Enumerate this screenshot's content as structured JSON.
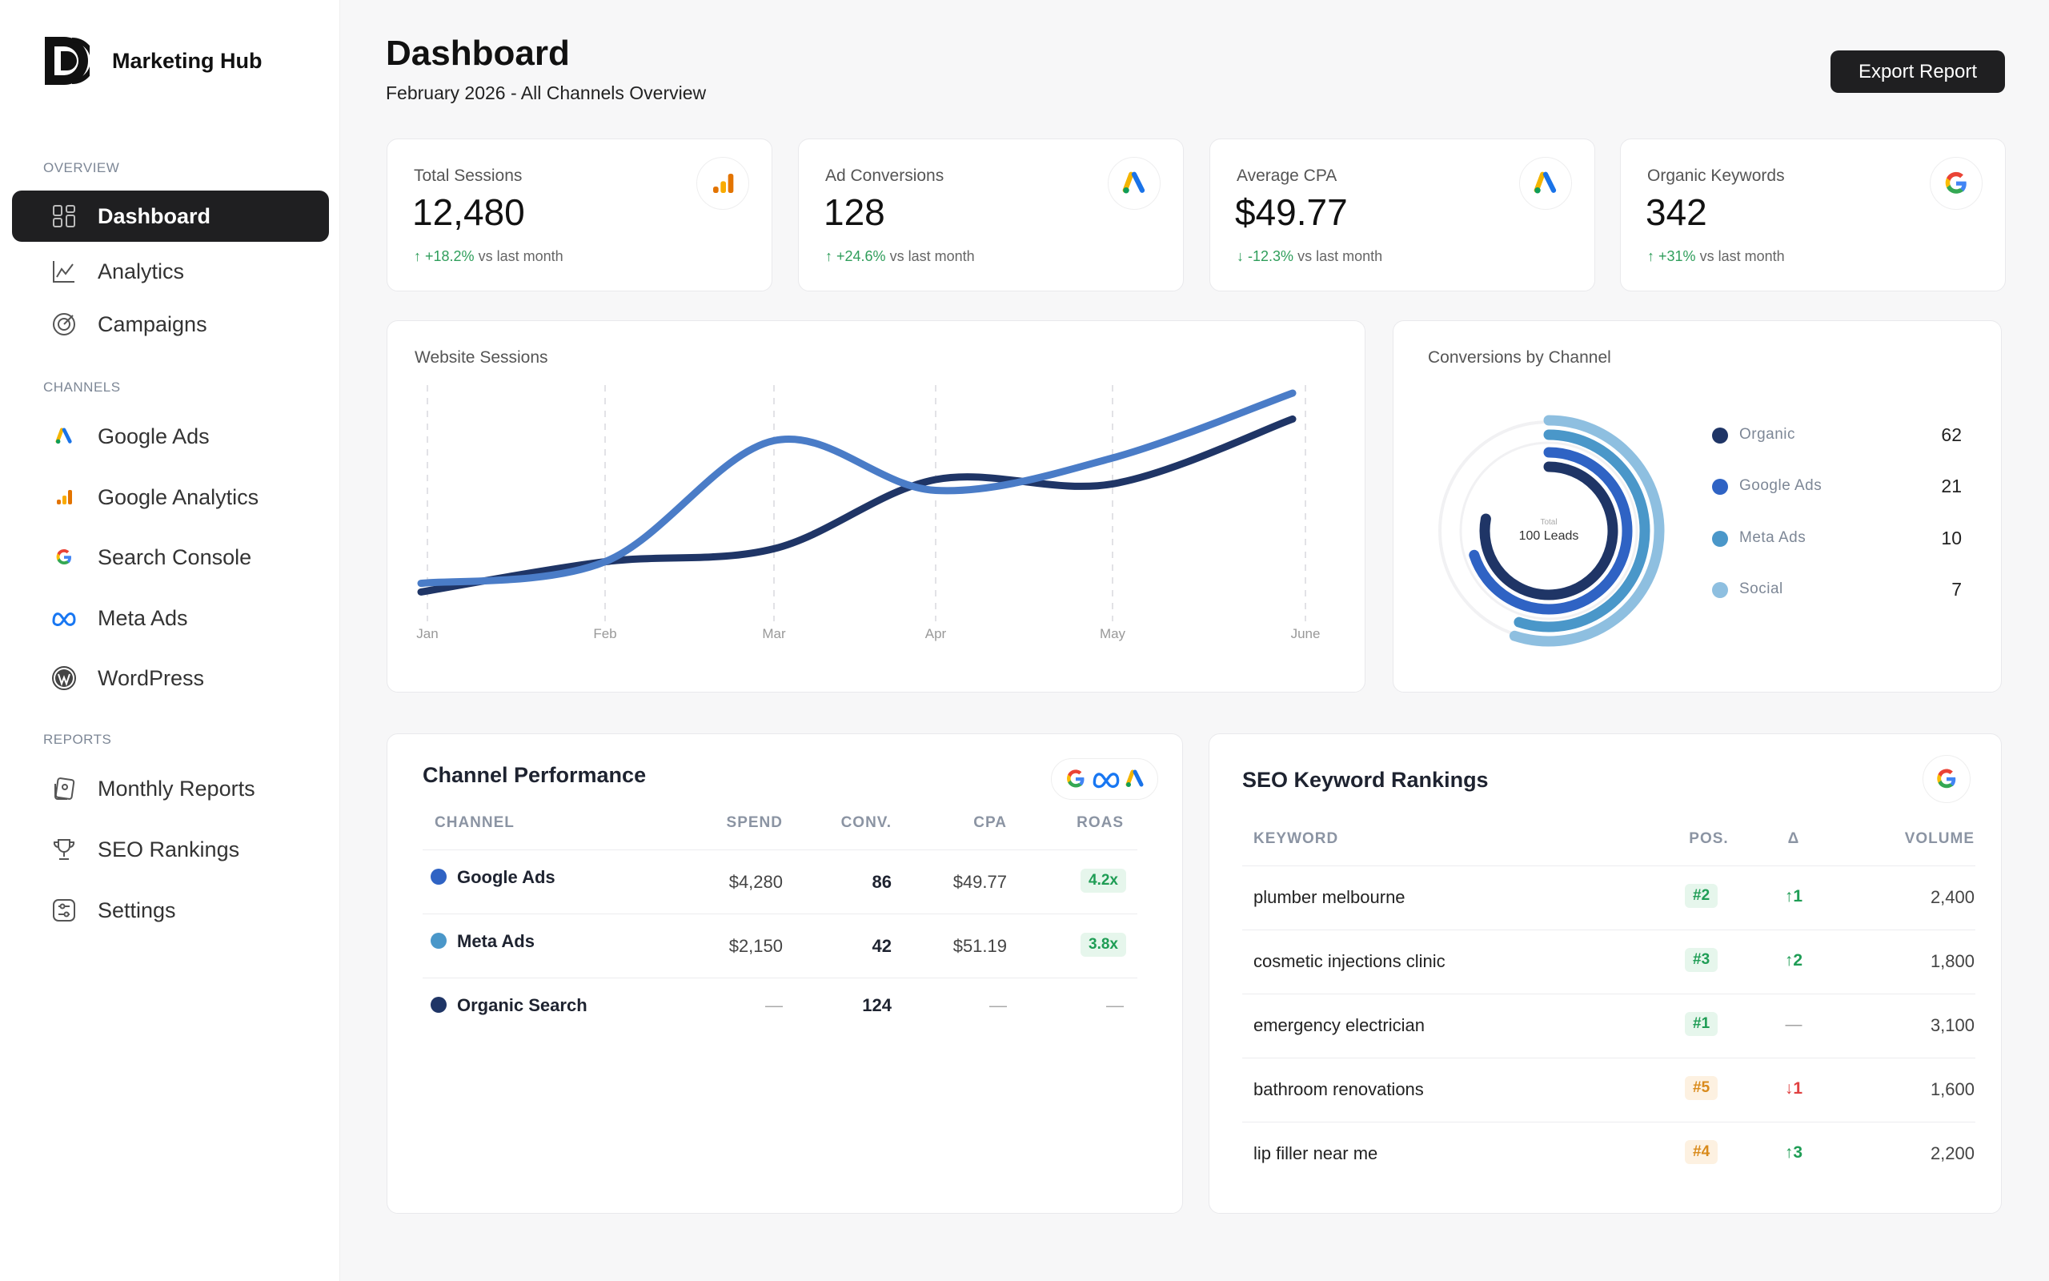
{
  "sidebar": {
    "brand": "Marketing Hub",
    "sections": {
      "overview": "OVERVIEW",
      "channels": "CHANNELS",
      "reports": "REPORTS"
    },
    "items": [
      {
        "label": "Dashboard",
        "icon": "grid-icon",
        "active": true
      },
      {
        "label": "Analytics",
        "icon": "line-chart-icon"
      },
      {
        "label": "Campaigns",
        "icon": "target-icon"
      },
      {
        "label": "Google Ads",
        "icon": "google-ads-icon"
      },
      {
        "label": "Google Analytics",
        "icon": "google-analytics-icon"
      },
      {
        "label": "Search Console",
        "icon": "google-icon"
      },
      {
        "label": "Meta Ads",
        "icon": "meta-icon"
      },
      {
        "label": "WordPress",
        "icon": "wordpress-icon"
      },
      {
        "label": "Monthly Reports",
        "icon": "reports-icon"
      },
      {
        "label": "SEO Rankings",
        "icon": "trophy-icon"
      },
      {
        "label": "Settings",
        "icon": "settings-icon"
      }
    ]
  },
  "header": {
    "title": "Dashboard",
    "subtitle": "February 2026 - All Channels Overview",
    "export_label": "Export Report"
  },
  "kpis": [
    {
      "label": "Total Sessions",
      "value": "12,480",
      "delta": "↑ +18.2%",
      "suffix": "vs last month",
      "icon": "google-analytics-icon"
    },
    {
      "label": "Ad Conversions",
      "value": "128",
      "delta": "↑ +24.6%",
      "suffix": "vs last month",
      "icon": "google-ads-icon"
    },
    {
      "label": "Average CPA",
      "value": "$49.77",
      "delta": "↓ -12.3%",
      "suffix": "vs last month",
      "icon": "google-ads-icon"
    },
    {
      "label": "Organic Keywords",
      "value": "342",
      "delta": "↑ +31%",
      "suffix": "vs last month",
      "icon": "google-icon"
    }
  ],
  "sessions_chart": {
    "title": "Website Sessions"
  },
  "conversions_chart": {
    "title": "Conversions by Channel",
    "center_small": "Total",
    "center_label": "100 Leads"
  },
  "chart_data": [
    {
      "type": "line",
      "title": "Website Sessions",
      "categories": [
        "Jan",
        "Feb",
        "Mar",
        "Apr",
        "May",
        "June"
      ],
      "series": [
        {
          "color": "#1f3566",
          "values": [
            0.08,
            0.22,
            0.28,
            0.6,
            0.58,
            0.88
          ]
        },
        {
          "color": "#4a7cc7",
          "values": [
            0.12,
            0.22,
            0.78,
            0.55,
            0.7,
            1.0
          ]
        }
      ],
      "ylim": [
        0,
        1
      ],
      "grid": "vertical dashed"
    },
    {
      "type": "pie",
      "title": "Conversions by Channel",
      "series": [
        {
          "name": "Organic",
          "value": 62,
          "color": "#1f3566"
        },
        {
          "name": "Google Ads",
          "value": 21,
          "color": "#2f63c4"
        },
        {
          "name": "Meta Ads",
          "value": 10,
          "color": "#4a97c9"
        },
        {
          "name": "Social",
          "value": 7,
          "color": "#8ebfe0"
        }
      ]
    }
  ],
  "channel_table": {
    "title": "Channel Performance",
    "headers": [
      "CHANNEL",
      "SPEND",
      "CONV.",
      "CPA",
      "ROAS"
    ],
    "rows": [
      {
        "channel": "Google Ads",
        "spend": "$4,280",
        "conv": "86",
        "cpa": "$49.77",
        "roas": "4.2x",
        "color": "#2f63c4"
      },
      {
        "channel": "Meta Ads",
        "spend": "$2,150",
        "conv": "42",
        "cpa": "$51.19",
        "roas": "3.8x",
        "color": "#4a97c9"
      },
      {
        "channel": "Organic Search",
        "spend": "—",
        "conv": "124",
        "cpa": "—",
        "roas": "—",
        "color": "#1f3566"
      }
    ]
  },
  "seo_table": {
    "title": "SEO Keyword Rankings",
    "headers": [
      "KEYWORD",
      "POS.",
      "Δ",
      "VOLUME"
    ],
    "rows": [
      {
        "keyword": "plumber melbourne",
        "pos": "#2",
        "delta": "↑1",
        "volume": "2,400",
        "pos_color": "green",
        "delta_dir": "up"
      },
      {
        "keyword": "cosmetic injections clinic",
        "pos": "#3",
        "delta": "↑2",
        "volume": "1,800",
        "pos_color": "green",
        "delta_dir": "up"
      },
      {
        "keyword": "emergency electrician",
        "pos": "#1",
        "delta": "—",
        "volume": "3,100",
        "pos_color": "green",
        "delta_dir": "none"
      },
      {
        "keyword": "bathroom renovations",
        "pos": "#5",
        "delta": "↓1",
        "volume": "1,600",
        "pos_color": "orange",
        "delta_dir": "down"
      },
      {
        "keyword": "lip filler near me",
        "pos": "#4",
        "delta": "↑3",
        "volume": "2,200",
        "pos_color": "orange",
        "delta_dir": "up"
      }
    ]
  }
}
